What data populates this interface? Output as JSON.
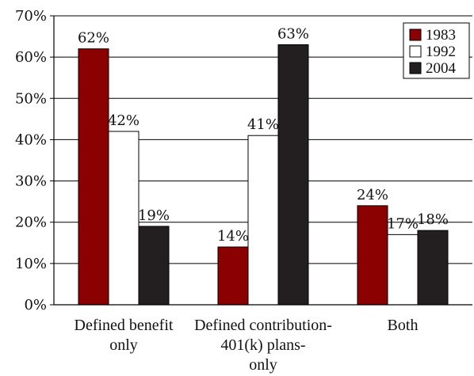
{
  "chart_data": {
    "type": "bar",
    "categories": [
      [
        "Defined benefit",
        "only"
      ],
      [
        "Defined contribution-",
        "401(k) plans-",
        "only"
      ],
      [
        "Both"
      ]
    ],
    "series": [
      {
        "name": "1983",
        "values": [
          62,
          14,
          24
        ],
        "color": "#8b0000"
      },
      {
        "name": "1992",
        "values": [
          42,
          41,
          17
        ],
        "color": "#ffffff"
      },
      {
        "name": "2004",
        "values": [
          19,
          63,
          18
        ],
        "color": "#231f20"
      }
    ],
    "data_labels": [
      [
        "62%",
        "42%",
        "19%"
      ],
      [
        "14%",
        "41%",
        "63%"
      ],
      [
        "24%",
        "17%",
        "18%"
      ]
    ],
    "ylim": [
      0,
      70
    ],
    "yticks": [
      0,
      10,
      20,
      30,
      40,
      50,
      60,
      70
    ],
    "ytick_labels": [
      "0%",
      "10%",
      "20%",
      "30%",
      "40%",
      "50%",
      "60%",
      "70%"
    ],
    "grid": true,
    "legend_position": "top-right",
    "colors": {
      "axis": "#000000",
      "grid": "#000000",
      "bar_stroke": "#000000"
    }
  }
}
